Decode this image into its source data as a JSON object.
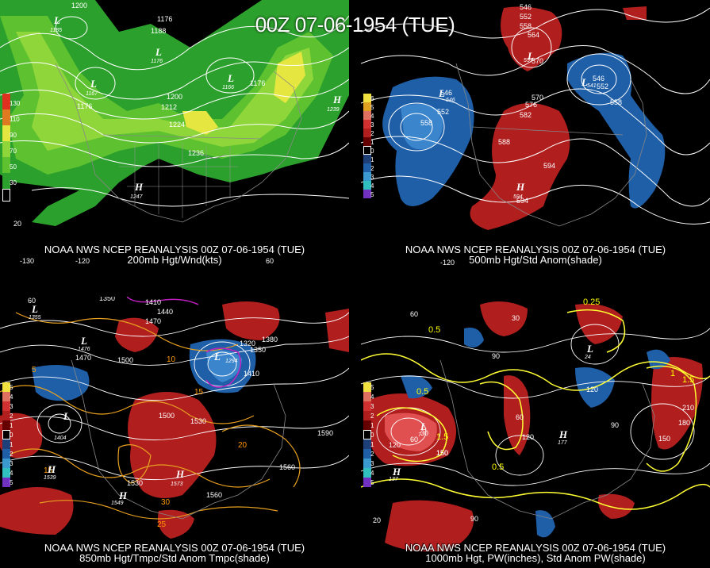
{
  "title": "00Z 07-06-1954 (TUE)",
  "colors": {
    "wind_green": "#2ca02c",
    "wind_light": "#7fd43a",
    "wind_yellow": "#f0e040",
    "pos_anom": "#b01e1e",
    "neg_anom": "#1e5fa8",
    "isotherm": "#e8a020",
    "pw": "#ffff33"
  },
  "panels": [
    {
      "id": "200mb",
      "caption_1": "NOAA NWS NCEP REANALYSIS 00Z 07-06-1954 (TUE)",
      "caption_2": "200mb Hgt/Wnd(kts)",
      "colorbar_labels": [
        "130",
        "110",
        "90",
        "70",
        "50",
        "30"
      ],
      "contour_labels": [
        "1200",
        "1176",
        "1188",
        "1176",
        "1212",
        "1200",
        "1224",
        "1236",
        "1176",
        "1200"
      ],
      "centers": [
        {
          "t": "L",
          "v": "1185"
        },
        {
          "t": "L",
          "v": "1167"
        },
        {
          "t": "L",
          "v": "1166"
        },
        {
          "t": "H",
          "v": "1239"
        },
        {
          "t": "H",
          "v": "1247"
        },
        {
          "t": "L",
          "v": "1176"
        }
      ],
      "lat_lon": [
        "-130",
        "-120",
        "60",
        "20"
      ]
    },
    {
      "id": "500mb",
      "caption_1": "NOAA NWS NCEP REANALYSIS 00Z 07-06-1954 (TUE)",
      "caption_2": "500mb Hgt/Std Anom(shade)",
      "colorbar_labels": [
        "6",
        "5",
        "4",
        "3",
        "2",
        "1",
        "0",
        "1",
        "2",
        "3",
        "4",
        "5"
      ],
      "contour_labels": [
        "546",
        "552",
        "558",
        "564",
        "570",
        "546",
        "552",
        "558",
        "570",
        "576",
        "582",
        "588",
        "594",
        "546",
        "552",
        "558",
        "594"
      ],
      "centers": [
        {
          "t": "L",
          "v": "546"
        },
        {
          "t": "L",
          "v": "541"
        },
        {
          "t": "H",
          "v": "594"
        },
        {
          "t": "L",
          "v": "557"
        }
      ],
      "lat_lon": [
        "-120"
      ]
    },
    {
      "id": "850mb",
      "caption_1": "NOAA NWS NCEP REANALYSIS 00Z 07-06-1954 (TUE)",
      "caption_2": "850mb Hgt/Tmpc/Std Anom Tmpc(shade)",
      "colorbar_labels": [
        "5",
        "4",
        "3",
        "2",
        "1",
        "0",
        "1",
        "2",
        "3",
        "4",
        "5"
      ],
      "contour_labels": [
        "1350",
        "1410",
        "1440",
        "1470",
        "1320",
        "1380",
        "1350",
        "1410",
        "1470",
        "1500",
        "1500",
        "1530",
        "1590",
        "1560",
        "1530",
        "1560",
        "10",
        "15",
        "20",
        "25",
        "30",
        "15",
        "5"
      ],
      "centers": [
        {
          "t": "L",
          "v": "1355"
        },
        {
          "t": "L",
          "v": "1476"
        },
        {
          "t": "L",
          "v": "1404"
        },
        {
          "t": "H",
          "v": "1539"
        },
        {
          "t": "H",
          "v": "1549"
        },
        {
          "t": "L",
          "v": "1294"
        },
        {
          "t": "H",
          "v": "1573"
        }
      ],
      "lat_lon": [
        "60"
      ]
    },
    {
      "id": "1000mb",
      "caption_1": "NOAA NWS NCEP REANALYSIS 00Z 07-06-1954 (TUE)",
      "caption_2": "1000mb Hgt, PW(inches), Std Anom PW(shade)",
      "colorbar_labels": [
        "5",
        "4",
        "3",
        "2",
        "1",
        "0",
        "1",
        "2",
        "3",
        "4",
        "5"
      ],
      "contour_labels": [
        "60",
        "30",
        "90",
        "120",
        "150",
        "60",
        "90",
        "120",
        "150",
        "180",
        "210",
        "0.5",
        "0.5",
        "1",
        "1.5",
        "0.25",
        "0.5",
        "1.5",
        "90",
        "60",
        "30",
        "120",
        "150"
      ],
      "centers": [
        {
          "t": "L",
          "v": "24"
        },
        {
          "t": "H",
          "v": "177"
        },
        {
          "t": "H",
          "v": "137"
        },
        {
          "t": "L",
          "v": "7"
        }
      ],
      "lat_lon": [
        "20"
      ]
    }
  ]
}
